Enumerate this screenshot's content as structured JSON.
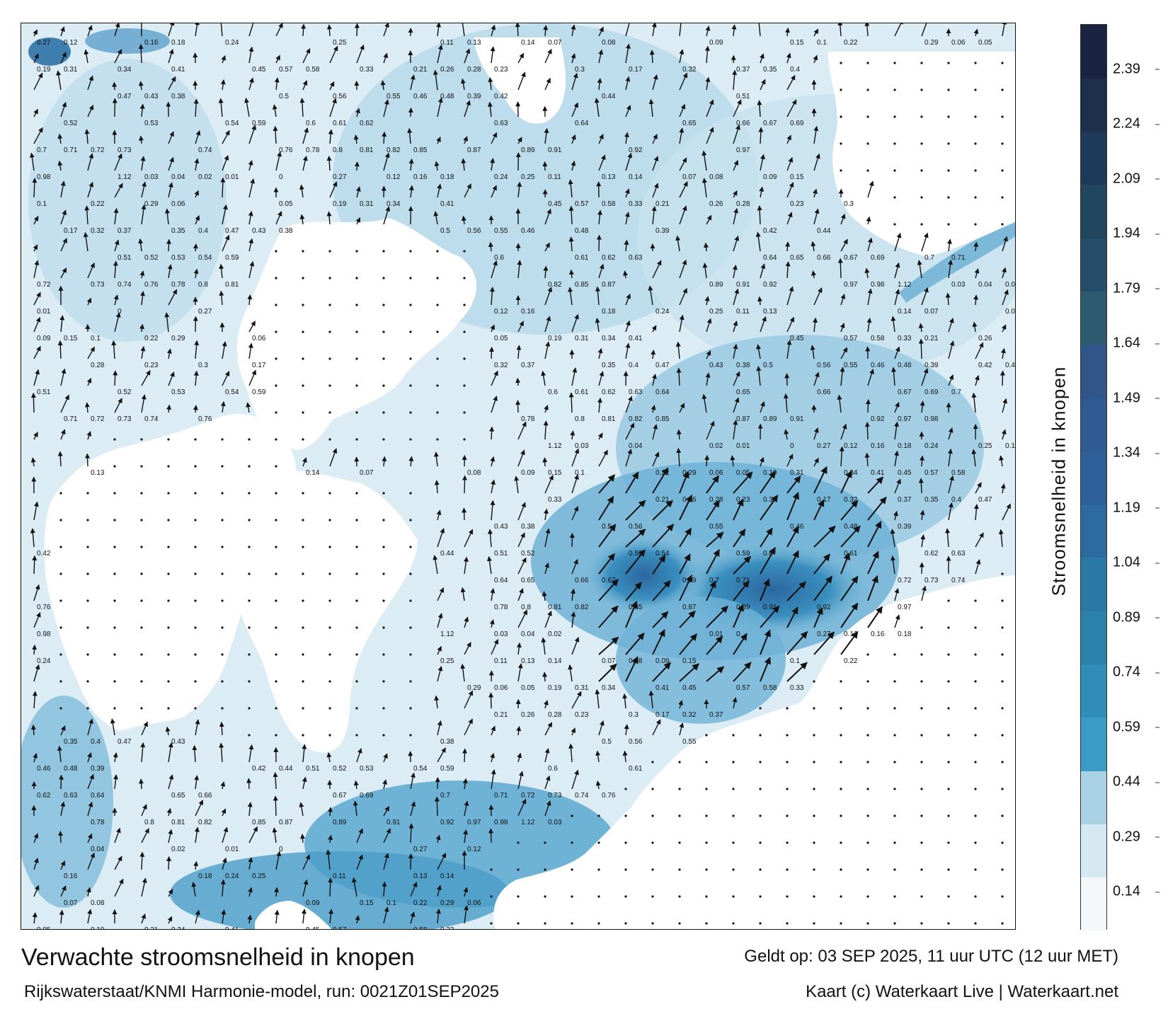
{
  "title": "Verwachte stroomsnelheid in knopen",
  "subtitle": "Rijkswaterstaat/KNMI Harmonie-model, run: 0021Z01SEP2025",
  "valid_time": "Geldt op: 03 SEP 2025, 11 uur UTC (12 uur MET)",
  "credit": "Kaart (c) Waterkaart Live | Waterkaart.net",
  "colorbar": {
    "label": "Stroomsnelheid in knopen",
    "ticks": [
      "0.14",
      "0.29",
      "0.44",
      "0.59",
      "0.74",
      "0.89",
      "1.04",
      "1.19",
      "1.34",
      "1.49",
      "1.64",
      "1.79",
      "1.94",
      "2.09",
      "2.24",
      "2.39"
    ],
    "colors": [
      "#f4f8fb",
      "#d6e8f1",
      "#a9d2e5",
      "#3a9cc4",
      "#2f8db8",
      "#2a82ac",
      "#2a78a6",
      "#2c6aa0",
      "#2e5f98",
      "#305a92",
      "#2f5589",
      "#2d5a6e",
      "#254d69",
      "#23465f",
      "#1f3a58",
      "#1d2f4b",
      "#1a2340"
    ]
  },
  "map": {
    "sea_color_light": "#e4f0f7",
    "sea_color_mid": "#8cc3dd",
    "sea_color_strong": "#3f8fbd",
    "sea_color_max": "#2c67a0",
    "land_color": "#ffffff"
  },
  "speed_labels": [
    "0.27",
    "0.12",
    "0.16",
    "0.18",
    "0.24",
    "0.25",
    "0.11",
    "0.13",
    "0.14",
    "0.07",
    "0.08",
    "0.09",
    "0.15",
    "0.1",
    "0.22",
    "0.29",
    "0.06",
    "0.05",
    "0.19",
    "0.31",
    "0.34",
    "0.41",
    "0.45",
    "0.57",
    "0.58",
    "0.33",
    "0.21",
    "0.26",
    "0.28",
    "0.23",
    "0.3",
    "0.17",
    "0.32",
    "0.37",
    "0.35",
    "0.4",
    "0.47",
    "0.43",
    "0.38",
    "0.5",
    "0.56",
    "0.55",
    "0.46",
    "0.48",
    "0.39",
    "0.42",
    "0.44",
    "0.51",
    "0.52",
    "0.53",
    "0.54",
    "0.59",
    "0.6",
    "0.61",
    "0.62",
    "0.63",
    "0.64",
    "0.65",
    "0.66",
    "0.67",
    "0.69",
    "0.7",
    "0.71",
    "0.72",
    "0.73",
    "0.74",
    "0.76",
    "0.78",
    "0.8",
    "0.81",
    "0.82",
    "0.85",
    "0.87",
    "0.89",
    "0.91",
    "0.92",
    "0.97",
    "0.98",
    "1.12",
    "0.03",
    "0.04",
    "0.02",
    "0.01",
    "0"
  ]
}
